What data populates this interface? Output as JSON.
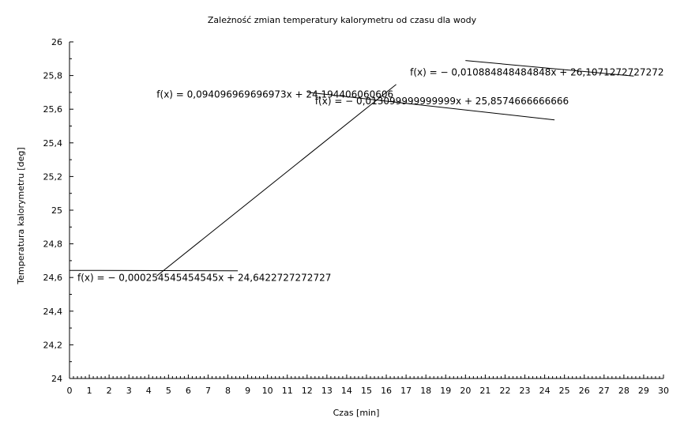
{
  "chart_data": {
    "type": "line",
    "title": "Zależność zmian temperatury kalorymetru od czasu dla wody",
    "xlabel": "Czas [min]",
    "ylabel": "Temperatura kalorymetru [deg]",
    "xlim": [
      0,
      30
    ],
    "ylim": [
      24,
      26
    ],
    "x_ticks": [
      "0",
      "1",
      "2",
      "3",
      "4",
      "5",
      "6",
      "7",
      "8",
      "9",
      "10",
      "11",
      "12",
      "13",
      "14",
      "15",
      "16",
      "17",
      "18",
      "19",
      "20",
      "21",
      "22",
      "23",
      "24",
      "25",
      "26",
      "27",
      "28",
      "29",
      "30"
    ],
    "y_ticks": [
      "24",
      "24,2",
      "24,4",
      "24,6",
      "24,8",
      "25",
      "25,2",
      "25,4",
      "25,6",
      "25,8",
      "26"
    ],
    "grid": false,
    "series": [
      {
        "equation": "f(x) = − 0,000254545454545x + 24,6422727272727",
        "x": [
          0,
          8.5
        ],
        "y": [
          24.6423,
          24.6401
        ]
      },
      {
        "equation": "f(x) = 0,094096969696973x + 24,194406060606",
        "x": [
          4.4,
          16.5
        ],
        "y": [
          24.6084,
          25.747
        ]
      },
      {
        "equation": "f(x) = − 0,013099999999999x + 25,8574666666666",
        "x": [
          12,
          24.5
        ],
        "y": [
          25.7003,
          25.5365
        ]
      },
      {
        "equation": "f(x) = − 0,010884848484848x + 26,1071272727272",
        "x": [
          20,
          28.5
        ],
        "y": [
          25.8894,
          25.7969
        ]
      }
    ]
  }
}
